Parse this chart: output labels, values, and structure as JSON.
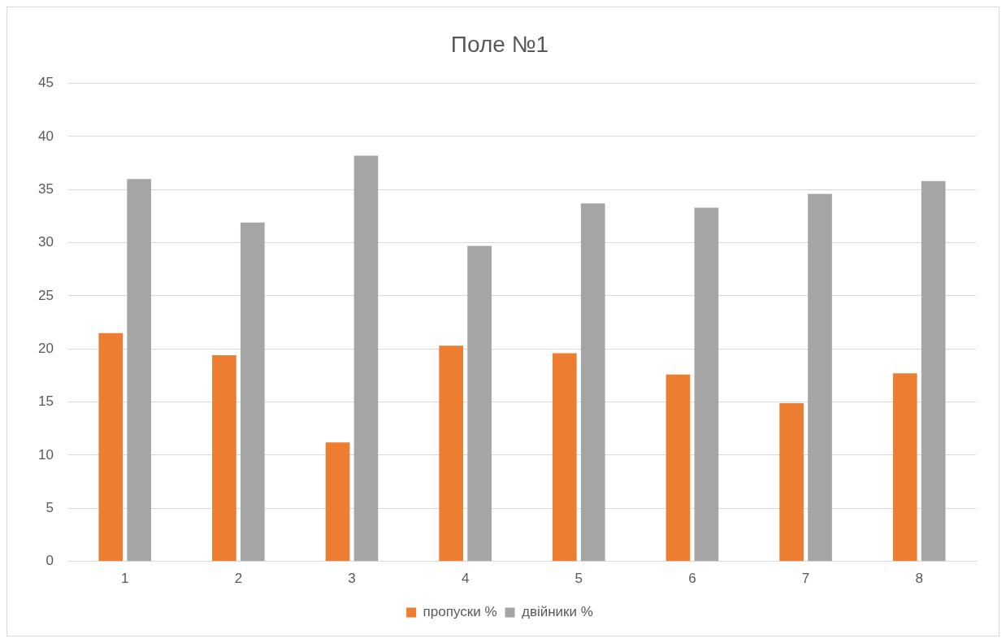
{
  "chart_data": {
    "type": "bar",
    "title": "Поле №1",
    "categories": [
      "1",
      "2",
      "3",
      "4",
      "5",
      "6",
      "7",
      "8"
    ],
    "series": [
      {
        "name": "пропуски %",
        "color": "#ed7d31",
        "values": [
          21.5,
          19.4,
          11.2,
          20.3,
          19.6,
          17.6,
          14.9,
          17.7
        ]
      },
      {
        "name": "двійники %",
        "color": "#a5a5a5",
        "values": [
          36.0,
          31.9,
          38.2,
          29.7,
          33.7,
          33.3,
          34.6,
          35.8
        ]
      }
    ],
    "ylim": [
      0,
      45
    ],
    "yticks": [
      0,
      5,
      10,
      15,
      20,
      25,
      30,
      35,
      40,
      45
    ],
    "grid": "y",
    "legend": "bottom"
  }
}
